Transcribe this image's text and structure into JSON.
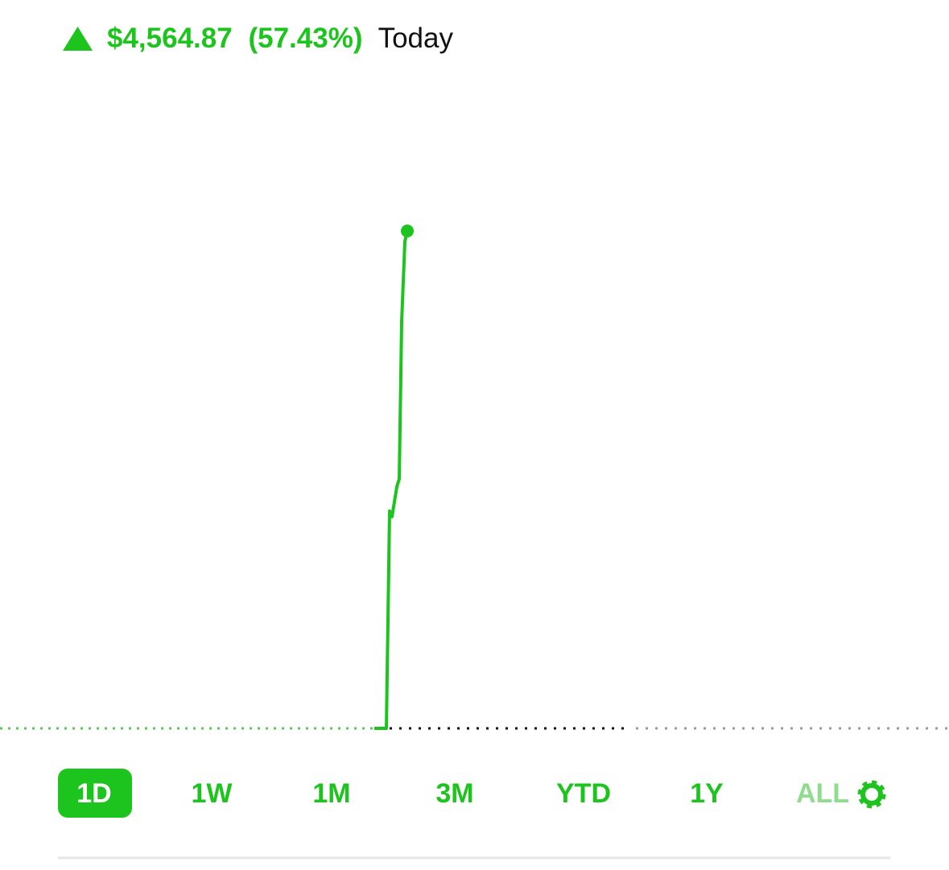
{
  "header": {
    "change": "$4,564.87",
    "percent": "(57.43%)",
    "period": "Today"
  },
  "ranges": [
    {
      "label": "1D",
      "selected": true
    },
    {
      "label": "1W",
      "selected": false
    },
    {
      "label": "1M",
      "selected": false
    },
    {
      "label": "3M",
      "selected": false
    },
    {
      "label": "YTD",
      "selected": false
    },
    {
      "label": "1Y",
      "selected": false
    },
    {
      "label": "ALL",
      "selected": false
    }
  ]
}
